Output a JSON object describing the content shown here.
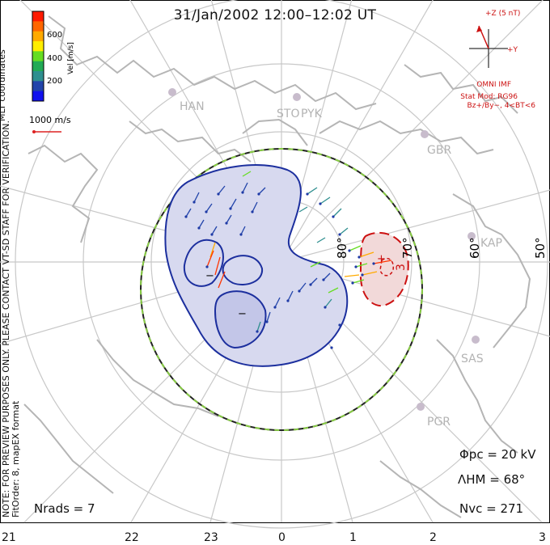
{
  "title": "31/Jan/2002 12:00–12:02 UT",
  "side_text": {
    "line1": "NOTE: FOR PREVIEW PURPOSES ONLY. PLEASE CONTACT VT-SD STAFF FOR VERIFICATION.",
    "line2": "FitOrder: 8, mapEX format"
  },
  "coord_label": "MLT coordinates",
  "colorbar": {
    "label": "Vel [m/s]",
    "ticks": [
      "600",
      "400",
      "200"
    ],
    "colors": [
      "#ff1a00",
      "#ff6600",
      "#ffaa00",
      "#ffee00",
      "#66dd22",
      "#22aa55",
      "#2f8f8f",
      "#2244aa",
      "#1111ee"
    ]
  },
  "scale_vector": {
    "label": "1000 m/s",
    "color": "#dd2222"
  },
  "imf": {
    "z_label": "+Z (5 nT)",
    "y_label": "+Y",
    "source": "OMNI IMF",
    "model": "Stat Mod: RG96",
    "condition": "Bz+/By−, 4<BT<6"
  },
  "stations": [
    "HAN",
    "STO",
    "PYK",
    "GBR",
    "KAP",
    "SAS",
    "PGR"
  ],
  "latitude_labels": [
    "80°",
    "70°",
    "60°",
    "50°"
  ],
  "contour_labels": {
    "minus_1": "−",
    "minus_2": "−",
    "plus": "+",
    "value": "3"
  },
  "stats": {
    "phi_pc": "Φpc = 20 kV",
    "lambda_hm": "ΛHM = 68°",
    "n_vc": "Nvc = 271",
    "n_rads": "Nrads = 7"
  },
  "mlt_hours": [
    "21",
    "22",
    "23",
    "0",
    "1",
    "2",
    "3"
  ]
}
